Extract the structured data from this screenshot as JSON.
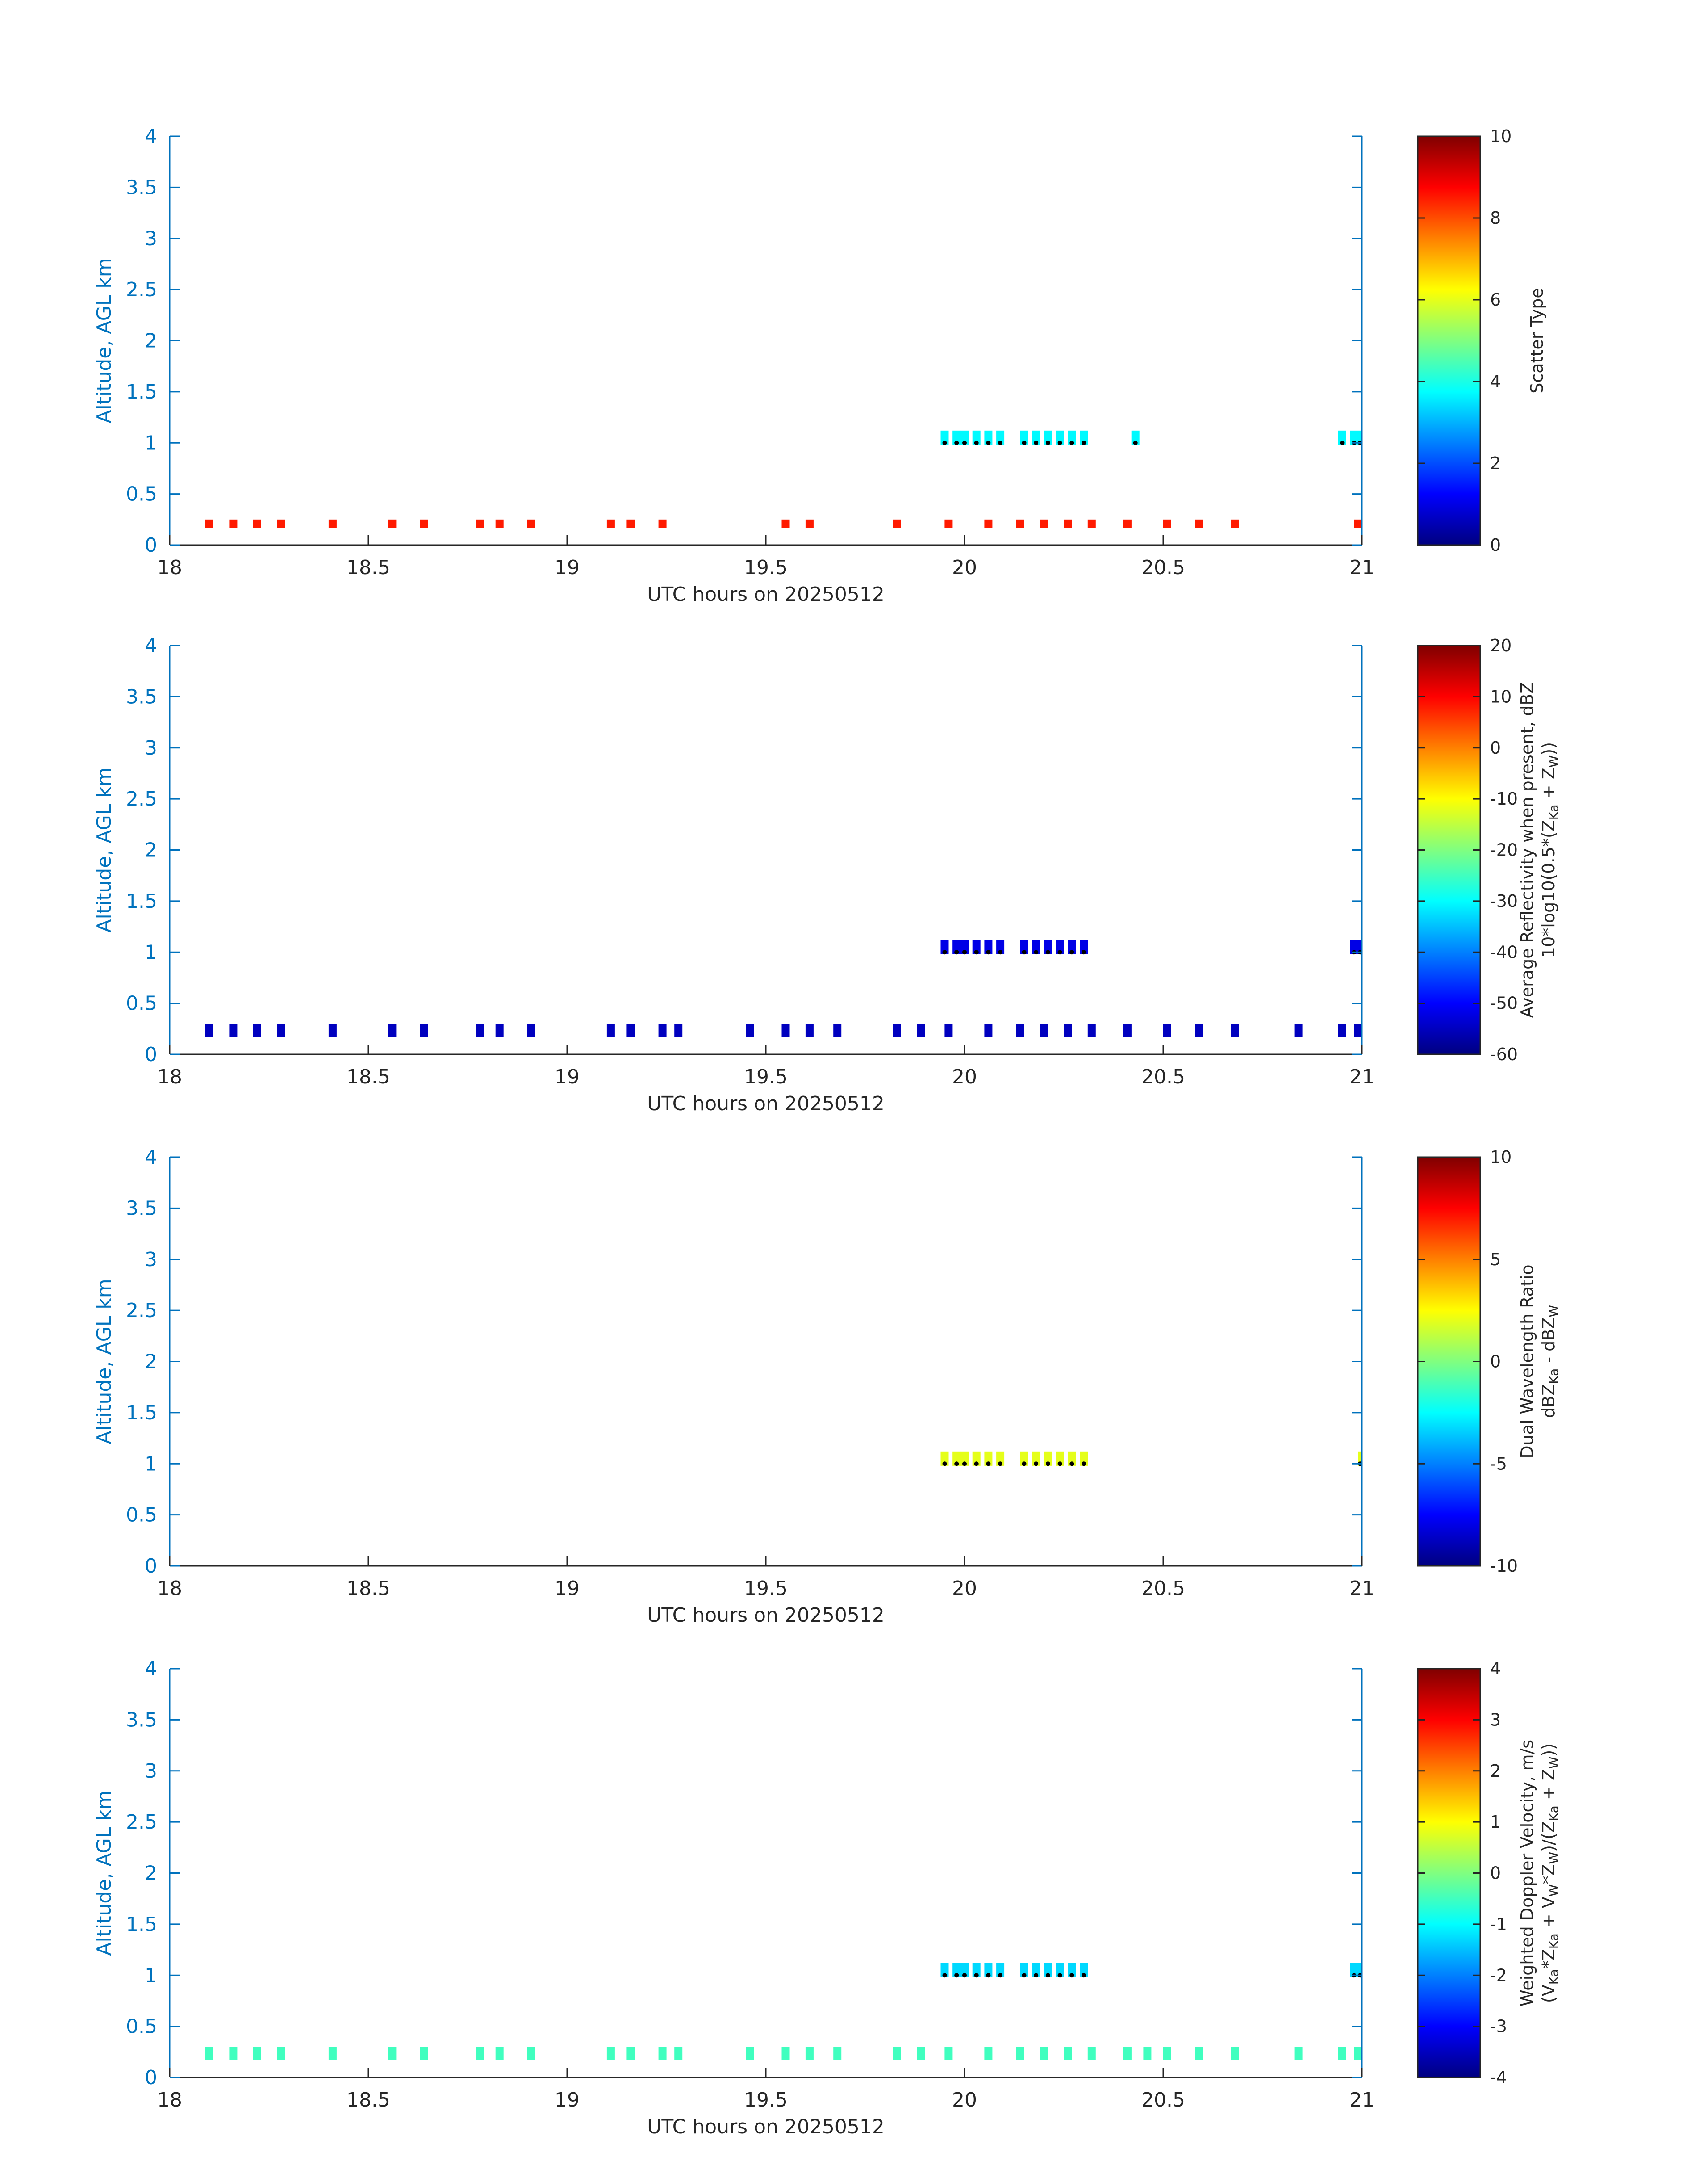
{
  "chart_data": [
    {
      "type": "heatmap",
      "panel": 1,
      "xlabel": "UTC hours on 20250512",
      "ylabel": "Altitude, AGL km",
      "xlim": [
        18,
        21
      ],
      "ylim": [
        0,
        4
      ],
      "xticks": [
        "18",
        "18.5",
        "19",
        "19.5",
        "20",
        "20.5",
        "21"
      ],
      "yticks": [
        "0",
        "0.5",
        "1",
        "1.5",
        "2",
        "2.5",
        "3",
        "3.5",
        "4"
      ],
      "colorbar": {
        "label_lines": [
          "Scatter Type"
        ],
        "clim": [
          0,
          10
        ],
        "ticks": [
          "0",
          "2",
          "4",
          "6",
          "8",
          "10"
        ]
      },
      "cloud_base_km": 1.0,
      "layers": [
        {
          "name": "surface clutter",
          "altitude_km": [
            0.17,
            0.25
          ],
          "value": 8.5,
          "x": [
            18.1,
            18.16,
            18.22,
            18.28,
            18.41,
            18.56,
            18.64,
            18.78,
            18.83,
            18.91,
            19.11,
            19.16,
            19.24,
            19.55,
            19.61,
            19.83,
            19.96,
            20.06,
            20.14,
            20.2,
            20.26,
            20.32,
            20.41,
            20.51,
            20.59,
            20.68,
            20.99
          ]
        },
        {
          "name": "cloud layer",
          "altitude_km": [
            0.98,
            1.12
          ],
          "value": 3.7,
          "x": [
            19.95,
            19.98,
            20.0,
            20.03,
            20.06,
            20.09,
            20.15,
            20.18,
            20.21,
            20.24,
            20.27,
            20.3,
            20.43,
            20.95,
            20.98,
            21.0
          ]
        }
      ]
    },
    {
      "type": "heatmap",
      "panel": 2,
      "xlabel": "UTC hours on 20250512",
      "ylabel": "Altitude, AGL km",
      "xlim": [
        18,
        21
      ],
      "ylim": [
        0,
        4
      ],
      "xticks": [
        "18",
        "18.5",
        "19",
        "19.5",
        "20",
        "20.5",
        "21"
      ],
      "yticks": [
        "0",
        "0.5",
        "1",
        "1.5",
        "2",
        "2.5",
        "3",
        "3.5",
        "4"
      ],
      "colorbar": {
        "label_lines": [
          "Average Reflectivity when present, dBZ",
          "10*log10(0.5*(Z",
          "Ka",
          " + Z",
          "W",
          "))"
        ],
        "clim": [
          -60,
          20
        ],
        "ticks": [
          "-60",
          "-50",
          "-40",
          "-30",
          "-20",
          "-10",
          "0",
          "10",
          "20"
        ]
      },
      "cloud_base_km": 1.0,
      "layers": [
        {
          "name": "surface returns",
          "altitude_km": [
            0.17,
            0.3
          ],
          "value": -55,
          "x": [
            18.1,
            18.16,
            18.22,
            18.28,
            18.41,
            18.56,
            18.64,
            18.78,
            18.83,
            18.91,
            19.11,
            19.16,
            19.24,
            19.28,
            19.46,
            19.55,
            19.61,
            19.68,
            19.83,
            19.89,
            19.96,
            20.06,
            20.14,
            20.2,
            20.26,
            20.32,
            20.41,
            20.51,
            20.59,
            20.68,
            20.84,
            20.95,
            20.99
          ]
        },
        {
          "name": "cloud layer",
          "altitude_km": [
            0.98,
            1.12
          ],
          "value": -52,
          "x": [
            19.95,
            19.98,
            20.0,
            20.03,
            20.06,
            20.09,
            20.15,
            20.18,
            20.21,
            20.24,
            20.27,
            20.3,
            20.98,
            21.0
          ]
        }
      ]
    },
    {
      "type": "heatmap",
      "panel": 3,
      "xlabel": "UTC hours on 20250512",
      "ylabel": "Altitude, AGL km",
      "xlim": [
        18,
        21
      ],
      "ylim": [
        0,
        4
      ],
      "xticks": [
        "18",
        "18.5",
        "19",
        "19.5",
        "20",
        "20.5",
        "21"
      ],
      "yticks": [
        "0",
        "0.5",
        "1",
        "1.5",
        "2",
        "2.5",
        "3",
        "3.5",
        "4"
      ],
      "colorbar": {
        "label_lines": [
          "Dual Wavelength Ratio",
          "dBZ",
          "Ka",
          " - dBZ",
          "W"
        ],
        "clim": [
          -10,
          10
        ],
        "ticks": [
          "-10",
          "-5",
          "0",
          "5",
          "10"
        ]
      },
      "cloud_base_km": 1.0,
      "layers": [
        {
          "name": "cloud layer",
          "altitude_km": [
            0.98,
            1.12
          ],
          "value": 2,
          "x": [
            19.95,
            19.98,
            20.0,
            20.03,
            20.06,
            20.09,
            20.15,
            20.18,
            20.21,
            20.24,
            20.27,
            20.3,
            21.0
          ]
        }
      ]
    },
    {
      "type": "heatmap",
      "panel": 4,
      "xlabel": "UTC hours on 20250512",
      "ylabel": "Altitude, AGL km",
      "xlim": [
        18,
        21
      ],
      "ylim": [
        0,
        4
      ],
      "xticks": [
        "18",
        "18.5",
        "19",
        "19.5",
        "20",
        "20.5",
        "21"
      ],
      "yticks": [
        "0",
        "0.5",
        "1",
        "1.5",
        "2",
        "2.5",
        "3",
        "3.5",
        "4"
      ],
      "colorbar": {
        "label_lines": [
          "Weighted Doppler Velocity, m/s",
          "(V",
          "Ka",
          "*Z",
          "Ka",
          " + V",
          "W",
          "*Z",
          "W",
          ")/(Z",
          "Ka",
          " + Z",
          "W",
          "))"
        ],
        "clim": [
          -4,
          4
        ],
        "ticks": [
          "-4",
          "-3",
          "-2",
          "-1",
          "0",
          "1",
          "2",
          "3",
          "4"
        ]
      },
      "cloud_base_km": 1.0,
      "layers": [
        {
          "name": "surface returns",
          "altitude_km": [
            0.17,
            0.3
          ],
          "value": -0.5,
          "x": [
            18.1,
            18.16,
            18.22,
            18.28,
            18.41,
            18.56,
            18.64,
            18.78,
            18.83,
            18.91,
            19.11,
            19.16,
            19.24,
            19.28,
            19.46,
            19.55,
            19.61,
            19.68,
            19.83,
            19.89,
            19.96,
            20.06,
            20.14,
            20.2,
            20.26,
            20.32,
            20.41,
            20.46,
            20.51,
            20.59,
            20.68,
            20.84,
            20.95,
            20.99
          ]
        },
        {
          "name": "cloud layer",
          "altitude_km": [
            0.98,
            1.12
          ],
          "value": -1.3,
          "x": [
            19.95,
            19.98,
            20.0,
            20.03,
            20.06,
            20.09,
            20.15,
            20.18,
            20.21,
            20.24,
            20.27,
            20.3,
            20.98,
            21.0
          ]
        }
      ]
    }
  ]
}
